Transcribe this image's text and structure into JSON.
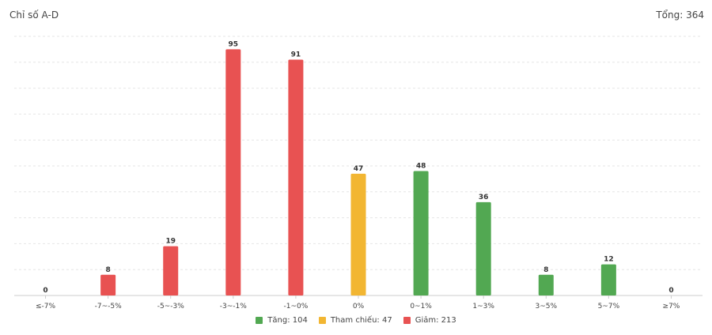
{
  "header": {
    "title": "Chỉ số A-D",
    "total_label": "Tổng: 364"
  },
  "colors": {
    "up": "#52a852",
    "reference": "#f2b632",
    "down": "#e85252",
    "grid": "#e6e6e6",
    "axis": "#cccccc"
  },
  "legend": {
    "items": [
      {
        "label": "Tăng: 104",
        "color": "#52a852"
      },
      {
        "label": "Tham chiếu: 47",
        "color": "#f2b632"
      },
      {
        "label": "Giảm: 213",
        "color": "#e85252"
      }
    ]
  },
  "chart_data": {
    "type": "bar",
    "categories": [
      "≤-7%",
      "-7~-5%",
      "-5~-3%",
      "-3~-1%",
      "-1~0%",
      "0%",
      "0~1%",
      "1~3%",
      "3~5%",
      "5~7%",
      "≥7%"
    ],
    "values": [
      0,
      8,
      19,
      95,
      91,
      47,
      48,
      36,
      8,
      12,
      0
    ],
    "bar_colors": [
      "#e85252",
      "#e85252",
      "#e85252",
      "#e85252",
      "#e85252",
      "#f2b632",
      "#52a852",
      "#52a852",
      "#52a852",
      "#52a852",
      "#52a852"
    ],
    "title": "Chỉ số A-D",
    "xlabel": "",
    "ylabel": "",
    "ylim": [
      0,
      100
    ],
    "grid": true,
    "legend_position": "bottom-center"
  }
}
